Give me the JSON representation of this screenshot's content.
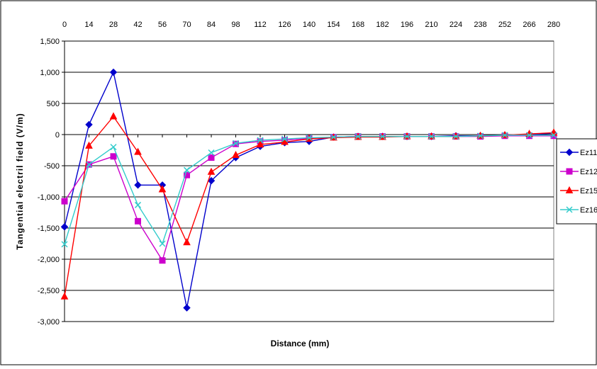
{
  "chart_data": {
    "type": "line",
    "title": "",
    "xlabel": "Distance (mm)",
    "ylabel": "Tangential electril field (V/m)",
    "x": [
      0,
      14,
      28,
      42,
      56,
      70,
      84,
      98,
      112,
      126,
      140,
      154,
      168,
      182,
      196,
      210,
      224,
      238,
      252,
      266,
      280
    ],
    "x_tick_labels": [
      "0",
      "14",
      "28",
      "42",
      "56",
      "70",
      "84",
      "98",
      "112",
      "126",
      "140",
      "154",
      "168",
      "182",
      "196",
      "210",
      "224",
      "238",
      "252",
      "266",
      "280"
    ],
    "y_tick_labels": [
      "1,500",
      "1,000",
      "500",
      "0",
      "-500",
      "-1,000",
      "-1,500",
      "-2,000",
      "-2,500",
      "-3,000"
    ],
    "y_ticks": [
      1500,
      1000,
      500,
      0,
      -500,
      -1000,
      -1500,
      -2000,
      -2500,
      -3000
    ],
    "ylim": [
      -3000,
      1500
    ],
    "grid": "horizontal",
    "x_axis_position": "top",
    "legend_position": "right",
    "series": [
      {
        "name": "Ez11",
        "color": "#0000cc",
        "marker": "diamond",
        "values": [
          -1480,
          160,
          1000,
          -810,
          -810,
          -2780,
          -740,
          -370,
          -190,
          -130,
          -110,
          -40,
          -30,
          -30,
          -30,
          -30,
          -20,
          -20,
          -10,
          0,
          20
        ]
      },
      {
        "name": "Ez12",
        "color": "#cc00cc",
        "marker": "square",
        "values": [
          -1070,
          -480,
          -350,
          -1390,
          -2020,
          -650,
          -370,
          -150,
          -110,
          -90,
          -60,
          -40,
          -30,
          -30,
          -30,
          -30,
          -30,
          -30,
          -20,
          -20,
          -20
        ]
      },
      {
        "name": "Ez15",
        "color": "#ff0000",
        "marker": "triangle",
        "values": [
          -2600,
          -180,
          290,
          -280,
          -880,
          -1730,
          -600,
          -330,
          -160,
          -120,
          -70,
          -50,
          -40,
          -40,
          -30,
          -30,
          -30,
          -20,
          -10,
          10,
          30
        ]
      },
      {
        "name": "Ez16",
        "color": "#33cccc",
        "marker": "x",
        "values": [
          -1760,
          -480,
          -200,
          -1130,
          -1750,
          -570,
          -290,
          -140,
          -90,
          -70,
          -50,
          -40,
          -30,
          -30,
          -30,
          -30,
          -30,
          -20,
          -10,
          -10,
          -10
        ]
      }
    ]
  }
}
